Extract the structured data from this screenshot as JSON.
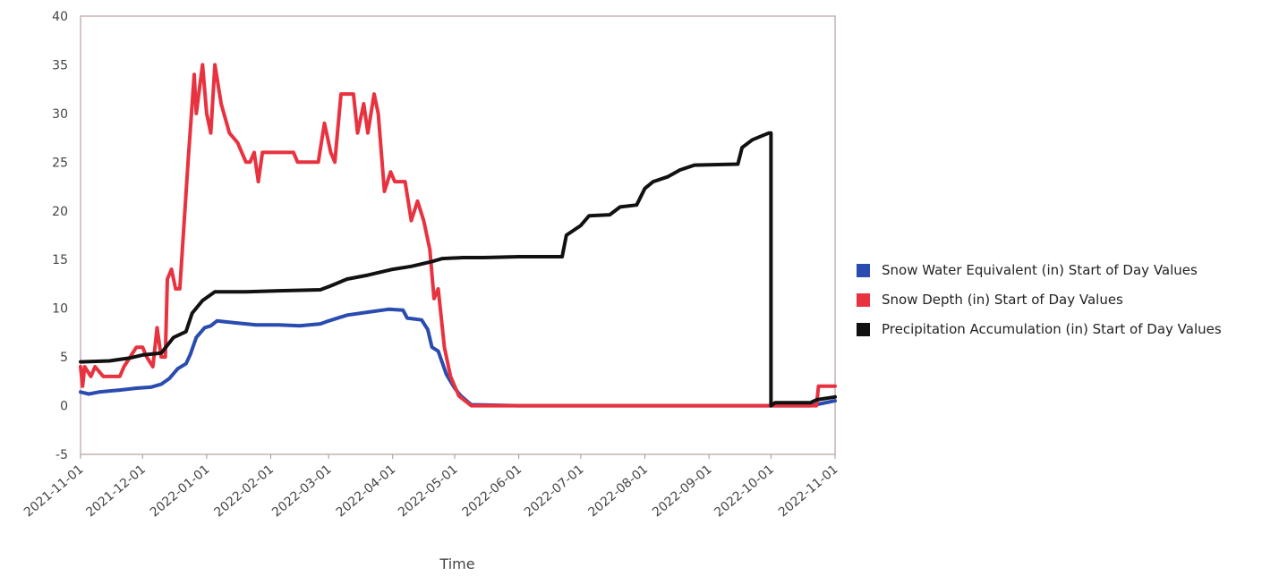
{
  "chart_data": {
    "type": "line",
    "xlabel": "Time",
    "ylabel": "",
    "ylim": [
      -5,
      40
    ],
    "yticks": [
      "-5",
      "0",
      "5",
      "10",
      "15",
      "20",
      "25",
      "30",
      "35",
      "40"
    ],
    "xlim": [
      "2021-11-01",
      "2022-11-01"
    ],
    "xticks": [
      "2021-11-01",
      "2021-12-01",
      "2022-01-01",
      "2022-02-01",
      "2022-03-01",
      "2022-04-01",
      "2022-05-01",
      "2022-06-01",
      "2022-07-01",
      "2022-08-01",
      "2022-09-01",
      "2022-10-01",
      "2022-11-01"
    ],
    "grid": false,
    "legend_position": "right",
    "series": [
      {
        "name": "Snow Water Equivalent (in) Start of Day Values",
        "color": "#2a4bb0",
        "points": [
          [
            "2021-11-01",
            1.4
          ],
          [
            "2021-11-05",
            1.2
          ],
          [
            "2021-11-10",
            1.4
          ],
          [
            "2021-11-20",
            1.6
          ],
          [
            "2021-11-28",
            1.8
          ],
          [
            "2021-12-05",
            1.9
          ],
          [
            "2021-12-10",
            2.2
          ],
          [
            "2021-12-14",
            2.8
          ],
          [
            "2021-12-18",
            3.8
          ],
          [
            "2021-12-22",
            4.3
          ],
          [
            "2021-12-24",
            5.2
          ],
          [
            "2021-12-27",
            7.0
          ],
          [
            "2021-12-31",
            8.0
          ],
          [
            "2022-01-03",
            8.2
          ],
          [
            "2022-01-06",
            8.7
          ],
          [
            "2022-01-15",
            8.5
          ],
          [
            "2022-01-25",
            8.3
          ],
          [
            "2022-02-05",
            8.3
          ],
          [
            "2022-02-15",
            8.2
          ],
          [
            "2022-02-25",
            8.4
          ],
          [
            "2022-03-01",
            8.7
          ],
          [
            "2022-03-10",
            9.3
          ],
          [
            "2022-03-20",
            9.6
          ],
          [
            "2022-03-30",
            9.9
          ],
          [
            "2022-04-06",
            9.8
          ],
          [
            "2022-04-08",
            9.0
          ],
          [
            "2022-04-15",
            8.8
          ],
          [
            "2022-04-18",
            7.8
          ],
          [
            "2022-04-20",
            6.0
          ],
          [
            "2022-04-23",
            5.6
          ],
          [
            "2022-04-27",
            3.2
          ],
          [
            "2022-05-01",
            1.8
          ],
          [
            "2022-05-04",
            1.0
          ],
          [
            "2022-05-09",
            0.1
          ],
          [
            "2022-06-01",
            0.0
          ],
          [
            "2022-08-01",
            0.0
          ],
          [
            "2022-10-01",
            0.0
          ],
          [
            "2022-10-20",
            0.0
          ],
          [
            "2022-10-25",
            0.2
          ],
          [
            "2022-11-01",
            0.5
          ]
        ]
      },
      {
        "name": "Snow Depth (in) Start of Day Values",
        "color": "#e8323f",
        "points": [
          [
            "2021-11-01",
            4.0
          ],
          [
            "2021-11-02",
            2.0
          ],
          [
            "2021-11-03",
            4.0
          ],
          [
            "2021-11-06",
            3.0
          ],
          [
            "2021-11-08",
            4.0
          ],
          [
            "2021-11-12",
            3.0
          ],
          [
            "2021-11-20",
            3.0
          ],
          [
            "2021-11-22",
            4.0
          ],
          [
            "2021-11-28",
            6.0
          ],
          [
            "2021-12-01",
            6.0
          ],
          [
            "2021-12-03",
            5.0
          ],
          [
            "2021-12-06",
            4.0
          ],
          [
            "2021-12-08",
            8.0
          ],
          [
            "2021-12-10",
            5.0
          ],
          [
            "2021-12-12",
            5.0
          ],
          [
            "2021-12-13",
            13.0
          ],
          [
            "2021-12-15",
            14.0
          ],
          [
            "2021-12-17",
            12.0
          ],
          [
            "2021-12-19",
            12.0
          ],
          [
            "2021-12-23",
            25.0
          ],
          [
            "2021-12-26",
            34.0
          ],
          [
            "2021-12-27",
            30.0
          ],
          [
            "2021-12-30",
            35.0
          ],
          [
            "2022-01-01",
            30.0
          ],
          [
            "2022-01-03",
            28.0
          ],
          [
            "2022-01-05",
            35.0
          ],
          [
            "2022-01-08",
            31.0
          ],
          [
            "2022-01-12",
            28.0
          ],
          [
            "2022-01-16",
            27.0
          ],
          [
            "2022-01-20",
            25.0
          ],
          [
            "2022-01-22",
            25.0
          ],
          [
            "2022-01-24",
            26.0
          ],
          [
            "2022-01-26",
            23.0
          ],
          [
            "2022-01-28",
            26.0
          ],
          [
            "2022-02-12",
            26.0
          ],
          [
            "2022-02-14",
            25.0
          ],
          [
            "2022-02-24",
            25.0
          ],
          [
            "2022-02-27",
            29.0
          ],
          [
            "2022-03-02",
            26.0
          ],
          [
            "2022-03-04",
            25.0
          ],
          [
            "2022-03-07",
            32.0
          ],
          [
            "2022-03-13",
            32.0
          ],
          [
            "2022-03-15",
            28.0
          ],
          [
            "2022-03-18",
            31.0
          ],
          [
            "2022-03-20",
            28.0
          ],
          [
            "2022-03-23",
            32.0
          ],
          [
            "2022-03-25",
            30.0
          ],
          [
            "2022-03-28",
            22.0
          ],
          [
            "2022-03-31",
            24.0
          ],
          [
            "2022-04-02",
            23.0
          ],
          [
            "2022-04-07",
            23.0
          ],
          [
            "2022-04-10",
            19.0
          ],
          [
            "2022-04-13",
            21.0
          ],
          [
            "2022-04-16",
            19.0
          ],
          [
            "2022-04-19",
            16.0
          ],
          [
            "2022-04-21",
            11.0
          ],
          [
            "2022-04-23",
            12.0
          ],
          [
            "2022-04-26",
            6.0
          ],
          [
            "2022-04-29",
            3.0
          ],
          [
            "2022-05-03",
            1.0
          ],
          [
            "2022-05-09",
            0.0
          ],
          [
            "2022-06-01",
            0.0
          ],
          [
            "2022-08-01",
            0.0
          ],
          [
            "2022-10-01",
            0.0
          ],
          [
            "2022-10-23",
            0.0
          ],
          [
            "2022-10-24",
            2.0
          ],
          [
            "2022-11-01",
            2.0
          ]
        ]
      },
      {
        "name": "Precipitation Accumulation (in) Start of Day Values",
        "color": "#111111",
        "points": [
          [
            "2021-11-01",
            4.5
          ],
          [
            "2021-11-15",
            4.6
          ],
          [
            "2021-11-25",
            4.9
          ],
          [
            "2021-12-01",
            5.2
          ],
          [
            "2021-12-10",
            5.4
          ],
          [
            "2021-12-16",
            7.0
          ],
          [
            "2021-12-22",
            7.6
          ],
          [
            "2021-12-25",
            9.5
          ],
          [
            "2021-12-30",
            10.8
          ],
          [
            "2022-01-05",
            11.7
          ],
          [
            "2022-01-20",
            11.7
          ],
          [
            "2022-02-05",
            11.8
          ],
          [
            "2022-02-25",
            11.9
          ],
          [
            "2022-03-02",
            12.3
          ],
          [
            "2022-03-10",
            13.0
          ],
          [
            "2022-03-20",
            13.4
          ],
          [
            "2022-04-01",
            14.0
          ],
          [
            "2022-04-10",
            14.3
          ],
          [
            "2022-04-20",
            14.8
          ],
          [
            "2022-04-25",
            15.1
          ],
          [
            "2022-05-05",
            15.2
          ],
          [
            "2022-05-15",
            15.2
          ],
          [
            "2022-06-01",
            15.3
          ],
          [
            "2022-06-22",
            15.3
          ],
          [
            "2022-06-24",
            17.5
          ],
          [
            "2022-07-01",
            18.5
          ],
          [
            "2022-07-05",
            19.5
          ],
          [
            "2022-07-15",
            19.6
          ],
          [
            "2022-07-20",
            20.4
          ],
          [
            "2022-07-28",
            20.6
          ],
          [
            "2022-08-01",
            22.3
          ],
          [
            "2022-08-05",
            23.0
          ],
          [
            "2022-08-12",
            23.5
          ],
          [
            "2022-08-18",
            24.2
          ],
          [
            "2022-08-25",
            24.7
          ],
          [
            "2022-09-15",
            24.8
          ],
          [
            "2022-09-17",
            26.5
          ],
          [
            "2022-09-22",
            27.3
          ],
          [
            "2022-09-30",
            28.0
          ],
          [
            "2022-10-01",
            28.0
          ],
          [
            "2022-10-01",
            0.0
          ],
          [
            "2022-10-03",
            0.3
          ],
          [
            "2022-10-20",
            0.3
          ],
          [
            "2022-10-23",
            0.6
          ],
          [
            "2022-11-01",
            0.9
          ]
        ]
      }
    ]
  }
}
